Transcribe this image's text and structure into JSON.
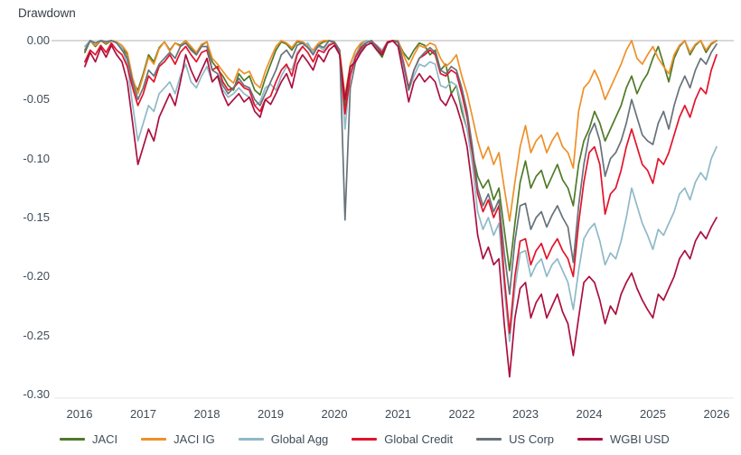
{
  "chart_data": {
    "type": "line",
    "title": "Drawdown",
    "frequency": "monthly",
    "x_start": "2016-02",
    "x_end": "2026-01",
    "x_tick_labels": [
      "2016",
      "2017",
      "2018",
      "2019",
      "2020",
      "2021",
      "2022",
      "2023",
      "2024",
      "2025",
      "2026"
    ],
    "y_tick_labels": [
      "0.00",
      "-0.05",
      "-0.10",
      "-0.15",
      "-0.20",
      "-0.25",
      "-0.30"
    ],
    "ylim": [
      -0.3,
      0.0
    ],
    "grid": "horizontal zero-line only",
    "grid_color": "#d9d9d9",
    "axis_line_color": "#e4e4e4",
    "text_color": "#3f4c57",
    "legend_position": "bottom",
    "series": [
      {
        "name": "JACI",
        "color": "#4f7a28",
        "values": [
          -0.01,
          0,
          -0.005,
          0,
          -0.003,
          0,
          -0.002,
          -0.006,
          -0.012,
          -0.035,
          -0.042,
          -0.028,
          -0.012,
          -0.018,
          -0.006,
          -0.001,
          -0.008,
          -0.002,
          -0.004,
          0,
          -0.006,
          -0.012,
          -0.004,
          -0.001,
          -0.018,
          -0.024,
          -0.03,
          -0.038,
          -0.042,
          -0.028,
          -0.034,
          -0.03,
          -0.042,
          -0.046,
          -0.032,
          -0.02,
          -0.008,
          -0.001,
          -0.003,
          -0.008,
          -0.001,
          -0.002,
          -0.006,
          -0.01,
          -0.004,
          -0.001,
          0,
          -0.002,
          -0.012,
          -0.055,
          -0.028,
          -0.012,
          -0.004,
          0,
          -0.002,
          -0.008,
          -0.014,
          -0.002,
          0,
          -0.001,
          -0.01,
          -0.016,
          -0.008,
          -0.002,
          -0.004,
          -0.012,
          -0.008,
          -0.025,
          -0.02,
          -0.045,
          -0.038,
          -0.06,
          -0.075,
          -0.095,
          -0.115,
          -0.125,
          -0.118,
          -0.135,
          -0.125,
          -0.16,
          -0.195,
          -0.155,
          -0.12,
          -0.102,
          -0.125,
          -0.115,
          -0.11,
          -0.125,
          -0.115,
          -0.105,
          -0.118,
          -0.125,
          -0.14,
          -0.105,
          -0.085,
          -0.075,
          -0.06,
          -0.07,
          -0.085,
          -0.075,
          -0.065,
          -0.055,
          -0.04,
          -0.03,
          -0.045,
          -0.035,
          -0.028,
          -0.015,
          -0.005,
          -0.02,
          -0.035,
          -0.015,
          -0.005,
          0,
          -0.012,
          -0.004,
          0,
          -0.01,
          -0.003,
          0
        ]
      },
      {
        "name": "JACI IG",
        "color": "#ee9028",
        "values": [
          -0.008,
          0,
          -0.004,
          0,
          -0.002,
          0,
          -0.001,
          -0.004,
          -0.01,
          -0.032,
          -0.045,
          -0.03,
          -0.014,
          -0.02,
          -0.007,
          -0.001,
          -0.009,
          -0.002,
          -0.005,
          0,
          -0.005,
          -0.01,
          -0.003,
          -0.001,
          -0.015,
          -0.02,
          -0.026,
          -0.032,
          -0.036,
          -0.024,
          -0.028,
          -0.026,
          -0.036,
          -0.04,
          -0.026,
          -0.015,
          -0.005,
          0,
          -0.002,
          -0.006,
          0,
          -0.001,
          -0.004,
          -0.008,
          -0.002,
          0,
          0,
          -0.001,
          -0.008,
          -0.047,
          -0.02,
          -0.008,
          -0.002,
          0,
          -0.001,
          -0.005,
          -0.01,
          -0.001,
          0,
          0,
          -0.012,
          -0.022,
          -0.012,
          -0.004,
          -0.006,
          -0.002,
          -0.004,
          -0.015,
          -0.022,
          -0.018,
          -0.012,
          -0.03,
          -0.045,
          -0.065,
          -0.085,
          -0.1,
          -0.09,
          -0.105,
          -0.095,
          -0.125,
          -0.153,
          -0.12,
          -0.09,
          -0.072,
          -0.095,
          -0.085,
          -0.08,
          -0.095,
          -0.085,
          -0.078,
          -0.09,
          -0.095,
          -0.108,
          -0.06,
          -0.04,
          -0.035,
          -0.025,
          -0.035,
          -0.05,
          -0.04,
          -0.03,
          -0.02,
          -0.008,
          0,
          -0.015,
          -0.02,
          -0.012,
          -0.005,
          -0.015,
          -0.022,
          -0.028,
          -0.012,
          -0.004,
          0,
          -0.01,
          -0.003,
          0,
          -0.008,
          -0.002,
          0
        ]
      },
      {
        "name": "Global Agg",
        "color": "#8fb9c7",
        "values": [
          -0.005,
          0,
          -0.002,
          0,
          -0.001,
          0,
          -0.002,
          -0.006,
          -0.02,
          -0.055,
          -0.085,
          -0.07,
          -0.055,
          -0.06,
          -0.045,
          -0.04,
          -0.035,
          -0.045,
          -0.03,
          -0.02,
          -0.035,
          -0.04,
          -0.03,
          -0.022,
          -0.035,
          -0.03,
          -0.042,
          -0.048,
          -0.045,
          -0.04,
          -0.045,
          -0.048,
          -0.055,
          -0.052,
          -0.04,
          -0.037,
          -0.042,
          -0.03,
          -0.022,
          -0.025,
          -0.01,
          -0.005,
          -0.002,
          -0.01,
          -0.005,
          -0.008,
          -0.003,
          -0.002,
          -0.01,
          -0.075,
          -0.025,
          -0.012,
          -0.005,
          0,
          -0.001,
          -0.004,
          -0.008,
          -0.001,
          0,
          -0.002,
          -0.02,
          -0.042,
          -0.03,
          -0.02,
          -0.022,
          -0.018,
          -0.02,
          -0.038,
          -0.04,
          -0.035,
          -0.038,
          -0.055,
          -0.075,
          -0.105,
          -0.145,
          -0.16,
          -0.15,
          -0.165,
          -0.155,
          -0.21,
          -0.255,
          -0.21,
          -0.18,
          -0.178,
          -0.2,
          -0.19,
          -0.185,
          -0.2,
          -0.19,
          -0.185,
          -0.195,
          -0.205,
          -0.228,
          -0.195,
          -0.168,
          -0.16,
          -0.155,
          -0.17,
          -0.19,
          -0.18,
          -0.185,
          -0.17,
          -0.15,
          -0.125,
          -0.14,
          -0.155,
          -0.165,
          -0.177,
          -0.16,
          -0.165,
          -0.155,
          -0.145,
          -0.13,
          -0.125,
          -0.135,
          -0.12,
          -0.112,
          -0.118,
          -0.1,
          -0.09
        ]
      },
      {
        "name": "Global Credit",
        "color": "#e3132b",
        "values": [
          -0.018,
          -0.008,
          -0.012,
          -0.004,
          -0.01,
          -0.002,
          -0.008,
          -0.012,
          -0.022,
          -0.04,
          -0.055,
          -0.045,
          -0.03,
          -0.035,
          -0.022,
          -0.018,
          -0.012,
          -0.02,
          -0.01,
          -0.005,
          -0.012,
          -0.018,
          -0.01,
          -0.008,
          -0.025,
          -0.022,
          -0.035,
          -0.042,
          -0.04,
          -0.035,
          -0.04,
          -0.042,
          -0.055,
          -0.06,
          -0.05,
          -0.047,
          -0.035,
          -0.025,
          -0.02,
          -0.03,
          -0.012,
          -0.005,
          -0.01,
          -0.018,
          -0.008,
          -0.01,
          -0.004,
          -0.002,
          -0.012,
          -0.062,
          -0.03,
          -0.014,
          -0.006,
          -0.002,
          0,
          -0.005,
          -0.01,
          -0.001,
          0,
          -0.001,
          -0.018,
          -0.04,
          -0.025,
          -0.015,
          -0.012,
          -0.008,
          -0.012,
          -0.028,
          -0.03,
          -0.025,
          -0.028,
          -0.045,
          -0.065,
          -0.095,
          -0.13,
          -0.145,
          -0.135,
          -0.15,
          -0.14,
          -0.2,
          -0.248,
          -0.2,
          -0.17,
          -0.168,
          -0.19,
          -0.178,
          -0.172,
          -0.185,
          -0.175,
          -0.168,
          -0.178,
          -0.185,
          -0.2,
          -0.155,
          -0.12,
          -0.095,
          -0.09,
          -0.105,
          -0.147,
          -0.13,
          -0.125,
          -0.11,
          -0.09,
          -0.075,
          -0.09,
          -0.105,
          -0.11,
          -0.121,
          -0.1,
          -0.105,
          -0.095,
          -0.08,
          -0.065,
          -0.055,
          -0.065,
          -0.05,
          -0.04,
          -0.045,
          -0.025,
          -0.012
        ]
      },
      {
        "name": "US Corp",
        "color": "#68727a",
        "values": [
          -0.008,
          0,
          -0.002,
          0,
          -0.001,
          0,
          -0.002,
          -0.008,
          -0.015,
          -0.035,
          -0.05,
          -0.04,
          -0.025,
          -0.03,
          -0.02,
          -0.015,
          -0.01,
          -0.015,
          -0.005,
          -0.002,
          -0.008,
          -0.012,
          -0.005,
          -0.005,
          -0.025,
          -0.028,
          -0.038,
          -0.045,
          -0.04,
          -0.032,
          -0.038,
          -0.04,
          -0.05,
          -0.055,
          -0.045,
          -0.035,
          -0.025,
          -0.012,
          -0.008,
          -0.015,
          -0.004,
          -0.002,
          -0.006,
          -0.012,
          -0.004,
          -0.006,
          0,
          -0.001,
          -0.008,
          -0.152,
          -0.04,
          -0.018,
          -0.008,
          -0.002,
          0,
          -0.006,
          -0.012,
          -0.002,
          0,
          -0.001,
          -0.02,
          -0.042,
          -0.025,
          -0.015,
          -0.01,
          -0.006,
          -0.01,
          -0.025,
          -0.028,
          -0.022,
          -0.025,
          -0.04,
          -0.06,
          -0.09,
          -0.125,
          -0.14,
          -0.13,
          -0.145,
          -0.135,
          -0.18,
          -0.215,
          -0.17,
          -0.14,
          -0.138,
          -0.16,
          -0.15,
          -0.145,
          -0.158,
          -0.148,
          -0.14,
          -0.15,
          -0.158,
          -0.188,
          -0.14,
          -0.105,
          -0.08,
          -0.07,
          -0.085,
          -0.115,
          -0.1,
          -0.095,
          -0.085,
          -0.07,
          -0.05,
          -0.065,
          -0.08,
          -0.085,
          -0.088,
          -0.07,
          -0.06,
          -0.075,
          -0.055,
          -0.04,
          -0.03,
          -0.04,
          -0.025,
          -0.015,
          -0.02,
          -0.01,
          -0.003
        ]
      },
      {
        "name": "WGBI USD",
        "color": "#ab0f3f",
        "values": [
          -0.022,
          -0.01,
          -0.018,
          -0.006,
          -0.014,
          -0.004,
          -0.012,
          -0.018,
          -0.035,
          -0.07,
          -0.105,
          -0.09,
          -0.075,
          -0.085,
          -0.065,
          -0.055,
          -0.045,
          -0.055,
          -0.035,
          -0.012,
          -0.025,
          -0.035,
          -0.025,
          -0.015,
          -0.035,
          -0.03,
          -0.045,
          -0.055,
          -0.05,
          -0.045,
          -0.052,
          -0.048,
          -0.06,
          -0.065,
          -0.05,
          -0.054,
          -0.045,
          -0.035,
          -0.028,
          -0.04,
          -0.02,
          -0.012,
          -0.018,
          -0.025,
          -0.012,
          -0.018,
          -0.008,
          -0.004,
          -0.012,
          -0.05,
          -0.022,
          -0.018,
          -0.01,
          -0.004,
          -0.002,
          -0.008,
          -0.012,
          -0.002,
          0,
          -0.005,
          -0.028,
          -0.052,
          -0.035,
          -0.028,
          -0.035,
          -0.03,
          -0.035,
          -0.05,
          -0.055,
          -0.045,
          -0.055,
          -0.07,
          -0.09,
          -0.125,
          -0.165,
          -0.185,
          -0.175,
          -0.19,
          -0.185,
          -0.24,
          -0.285,
          -0.235,
          -0.21,
          -0.205,
          -0.235,
          -0.222,
          -0.215,
          -0.235,
          -0.225,
          -0.215,
          -0.23,
          -0.24,
          -0.267,
          -0.235,
          -0.205,
          -0.2,
          -0.205,
          -0.22,
          -0.24,
          -0.225,
          -0.232,
          -0.215,
          -0.205,
          -0.197,
          -0.21,
          -0.22,
          -0.228,
          -0.235,
          -0.215,
          -0.22,
          -0.21,
          -0.2,
          -0.185,
          -0.178,
          -0.185,
          -0.17,
          -0.162,
          -0.168,
          -0.158,
          -0.15
        ]
      }
    ]
  }
}
